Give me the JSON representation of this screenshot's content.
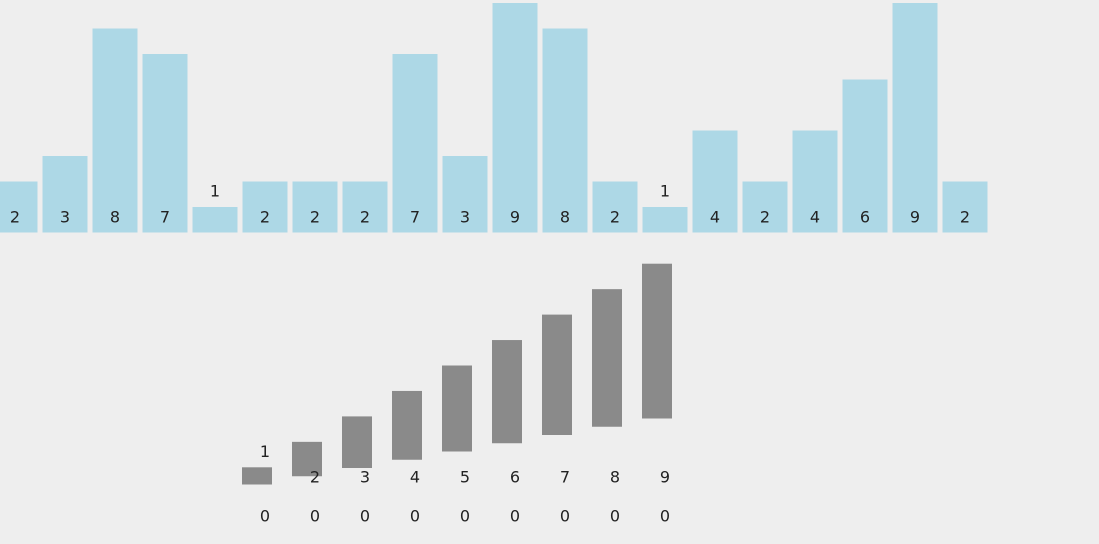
{
  "array": {
    "values": [
      2,
      3,
      8,
      7,
      1,
      2,
      2,
      2,
      7,
      3,
      9,
      8,
      2,
      1,
      4,
      2,
      4,
      6,
      9,
      2
    ],
    "color": "#add8e6"
  },
  "buckets": {
    "keys": [
      1,
      2,
      3,
      4,
      5,
      6,
      7,
      8,
      9
    ],
    "counts": [
      0,
      0,
      0,
      0,
      0,
      0,
      0,
      0,
      0
    ],
    "color": "#8a8a8a"
  }
}
